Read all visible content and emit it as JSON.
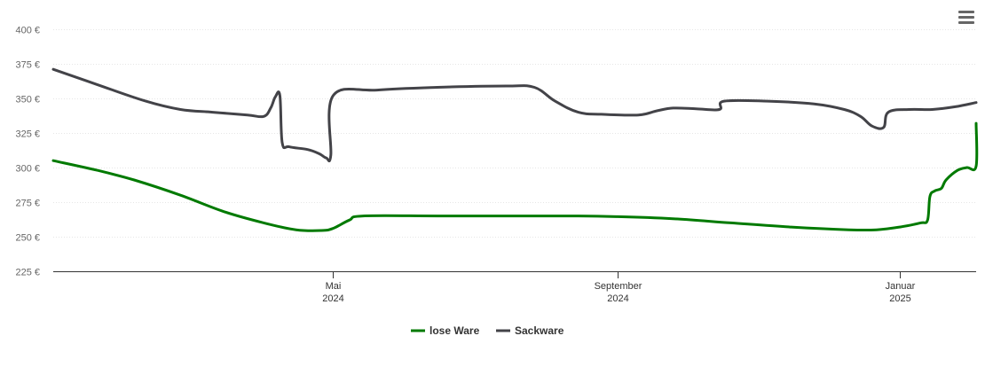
{
  "chart_data": {
    "type": "line",
    "title": "",
    "xlabel": "",
    "ylabel": "",
    "ylim": [
      225,
      400
    ],
    "y_ticks": [
      "225 €",
      "250 €",
      "275 €",
      "300 €",
      "325 €",
      "350 €",
      "375 €",
      "400 €"
    ],
    "y_tick_values": [
      225,
      250,
      275,
      300,
      325,
      350,
      375,
      400
    ],
    "xlim": [
      "2024-01-01",
      "2025-02-03"
    ],
    "x_ticks": [
      {
        "date": "2024-05-01",
        "line1": "Mai",
        "line2": "2024"
      },
      {
        "date": "2024-09-01",
        "line1": "September",
        "line2": "2024"
      },
      {
        "date": "2025-01-01",
        "line1": "Januar",
        "line2": "2025"
      }
    ],
    "grid": true,
    "legend_position": "bottom-center",
    "series": [
      {
        "name": "lose Ware",
        "color": "#007a00",
        "points": [
          [
            "2024-01-01",
            305
          ],
          [
            "2024-01-20",
            298
          ],
          [
            "2024-02-05",
            291
          ],
          [
            "2024-02-25",
            280
          ],
          [
            "2024-03-15",
            268
          ],
          [
            "2024-04-01",
            260
          ],
          [
            "2024-04-15",
            255
          ],
          [
            "2024-04-26",
            254.5
          ],
          [
            "2024-05-01",
            256
          ],
          [
            "2024-05-08",
            262
          ],
          [
            "2024-05-14",
            265
          ],
          [
            "2024-06-15",
            265
          ],
          [
            "2024-07-15",
            265
          ],
          [
            "2024-08-15",
            265
          ],
          [
            "2024-09-01",
            264.5
          ],
          [
            "2024-09-25",
            263
          ],
          [
            "2024-10-20",
            260
          ],
          [
            "2024-11-15",
            257
          ],
          [
            "2024-12-10",
            255
          ],
          [
            "2024-12-22",
            255
          ],
          [
            "2025-01-01",
            257
          ],
          [
            "2025-01-10",
            260
          ],
          [
            "2025-01-13",
            262
          ],
          [
            "2025-01-14",
            279
          ],
          [
            "2025-01-16",
            283
          ],
          [
            "2025-01-19",
            285
          ],
          [
            "2025-01-21",
            291
          ],
          [
            "2025-01-26",
            298
          ],
          [
            "2025-01-30",
            300
          ],
          [
            "2025-02-03",
            301
          ],
          [
            "2025-02-03",
            332
          ]
        ]
      },
      {
        "name": "Sackware",
        "color": "#434348",
        "points": [
          [
            "2024-01-01",
            371
          ],
          [
            "2024-01-20",
            360
          ],
          [
            "2024-02-10",
            348
          ],
          [
            "2024-02-25",
            342
          ],
          [
            "2024-03-10",
            340
          ],
          [
            "2024-03-25",
            338
          ],
          [
            "2024-04-01",
            337
          ],
          [
            "2024-04-04",
            343
          ],
          [
            "2024-04-06",
            351
          ],
          [
            "2024-04-08",
            352
          ],
          [
            "2024-04-09",
            318
          ],
          [
            "2024-04-12",
            315
          ],
          [
            "2024-04-20",
            313
          ],
          [
            "2024-04-25",
            310
          ],
          [
            "2024-04-28",
            307
          ],
          [
            "2024-04-30",
            309
          ],
          [
            "2024-05-01",
            352
          ],
          [
            "2024-05-20",
            356
          ],
          [
            "2024-06-15",
            358
          ],
          [
            "2024-07-15",
            359
          ],
          [
            "2024-07-27",
            358
          ],
          [
            "2024-08-05",
            348
          ],
          [
            "2024-08-15",
            340
          ],
          [
            "2024-08-25",
            338.5
          ],
          [
            "2024-09-10",
            338
          ],
          [
            "2024-09-18",
            341
          ],
          [
            "2024-09-25",
            343
          ],
          [
            "2024-10-05",
            342.5
          ],
          [
            "2024-10-15",
            342
          ],
          [
            "2024-10-17",
            348
          ],
          [
            "2024-11-05",
            348
          ],
          [
            "2024-11-25",
            346
          ],
          [
            "2024-12-08",
            342
          ],
          [
            "2024-12-15",
            337
          ],
          [
            "2024-12-20",
            330
          ],
          [
            "2024-12-25",
            329
          ],
          [
            "2024-12-27",
            340
          ],
          [
            "2025-01-05",
            342
          ],
          [
            "2025-01-15",
            342
          ],
          [
            "2025-01-25",
            344
          ],
          [
            "2025-02-03",
            347
          ]
        ]
      }
    ]
  },
  "menu_icon": "hamburger-menu-icon"
}
